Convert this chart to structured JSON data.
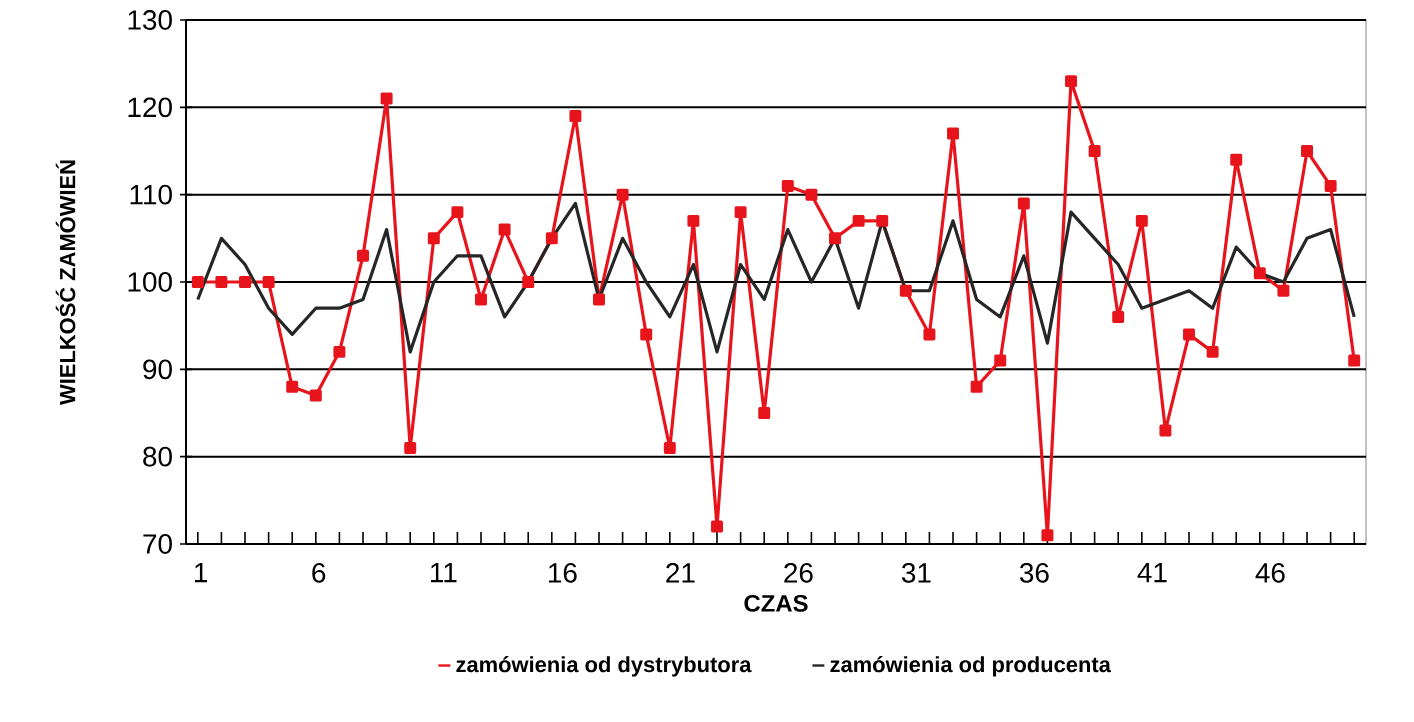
{
  "chart_data": {
    "type": "line",
    "xlabel": "CZAS",
    "ylabel": "WIELKOŚĆ ZAMÓWIEŃ",
    "categories": [
      "1",
      null,
      null,
      null,
      null,
      "6",
      null,
      null,
      null,
      null,
      "11",
      null,
      null,
      null,
      null,
      "16",
      null,
      null,
      null,
      null,
      "21",
      null,
      null,
      null,
      null,
      "26",
      null,
      null,
      null,
      null,
      "31",
      null,
      null,
      null,
      null,
      "36",
      null,
      null,
      null,
      null,
      "41",
      null,
      null,
      null,
      null,
      "46",
      null,
      null,
      null,
      null
    ],
    "series": [
      {
        "name": "zamówienia od dystrybutora",
        "color": "#e8141b",
        "marker": "square",
        "values": [
          100,
          100,
          100,
          100,
          88,
          87,
          92,
          103,
          121,
          81,
          105,
          108,
          98,
          106,
          100,
          105,
          119,
          98,
          110,
          94,
          81,
          107,
          72,
          108,
          85,
          111,
          110,
          105,
          107,
          107,
          99,
          94,
          117,
          88,
          91,
          109,
          71,
          123,
          115,
          96,
          107,
          83,
          94,
          92,
          114,
          101,
          99,
          115,
          111,
          91
        ]
      },
      {
        "name": "zamówienia od producenta",
        "color": "#262626",
        "marker": "none",
        "values": [
          98,
          105,
          102,
          97,
          94,
          97,
          97,
          98,
          106,
          92,
          100,
          103,
          103,
          96,
          100,
          105,
          109,
          98,
          105,
          100,
          96,
          102,
          92,
          102,
          98,
          106,
          100,
          105,
          97,
          107,
          99,
          99,
          107,
          98,
          96,
          103,
          93,
          108,
          105,
          102,
          97,
          98,
          99,
          97,
          104,
          101,
          100,
          105,
          106,
          96
        ]
      }
    ],
    "ylim": [
      70,
      130
    ],
    "yticks": [
      70,
      80,
      90,
      100,
      110,
      120,
      130
    ],
    "grid": "y",
    "legend": "bottom"
  }
}
